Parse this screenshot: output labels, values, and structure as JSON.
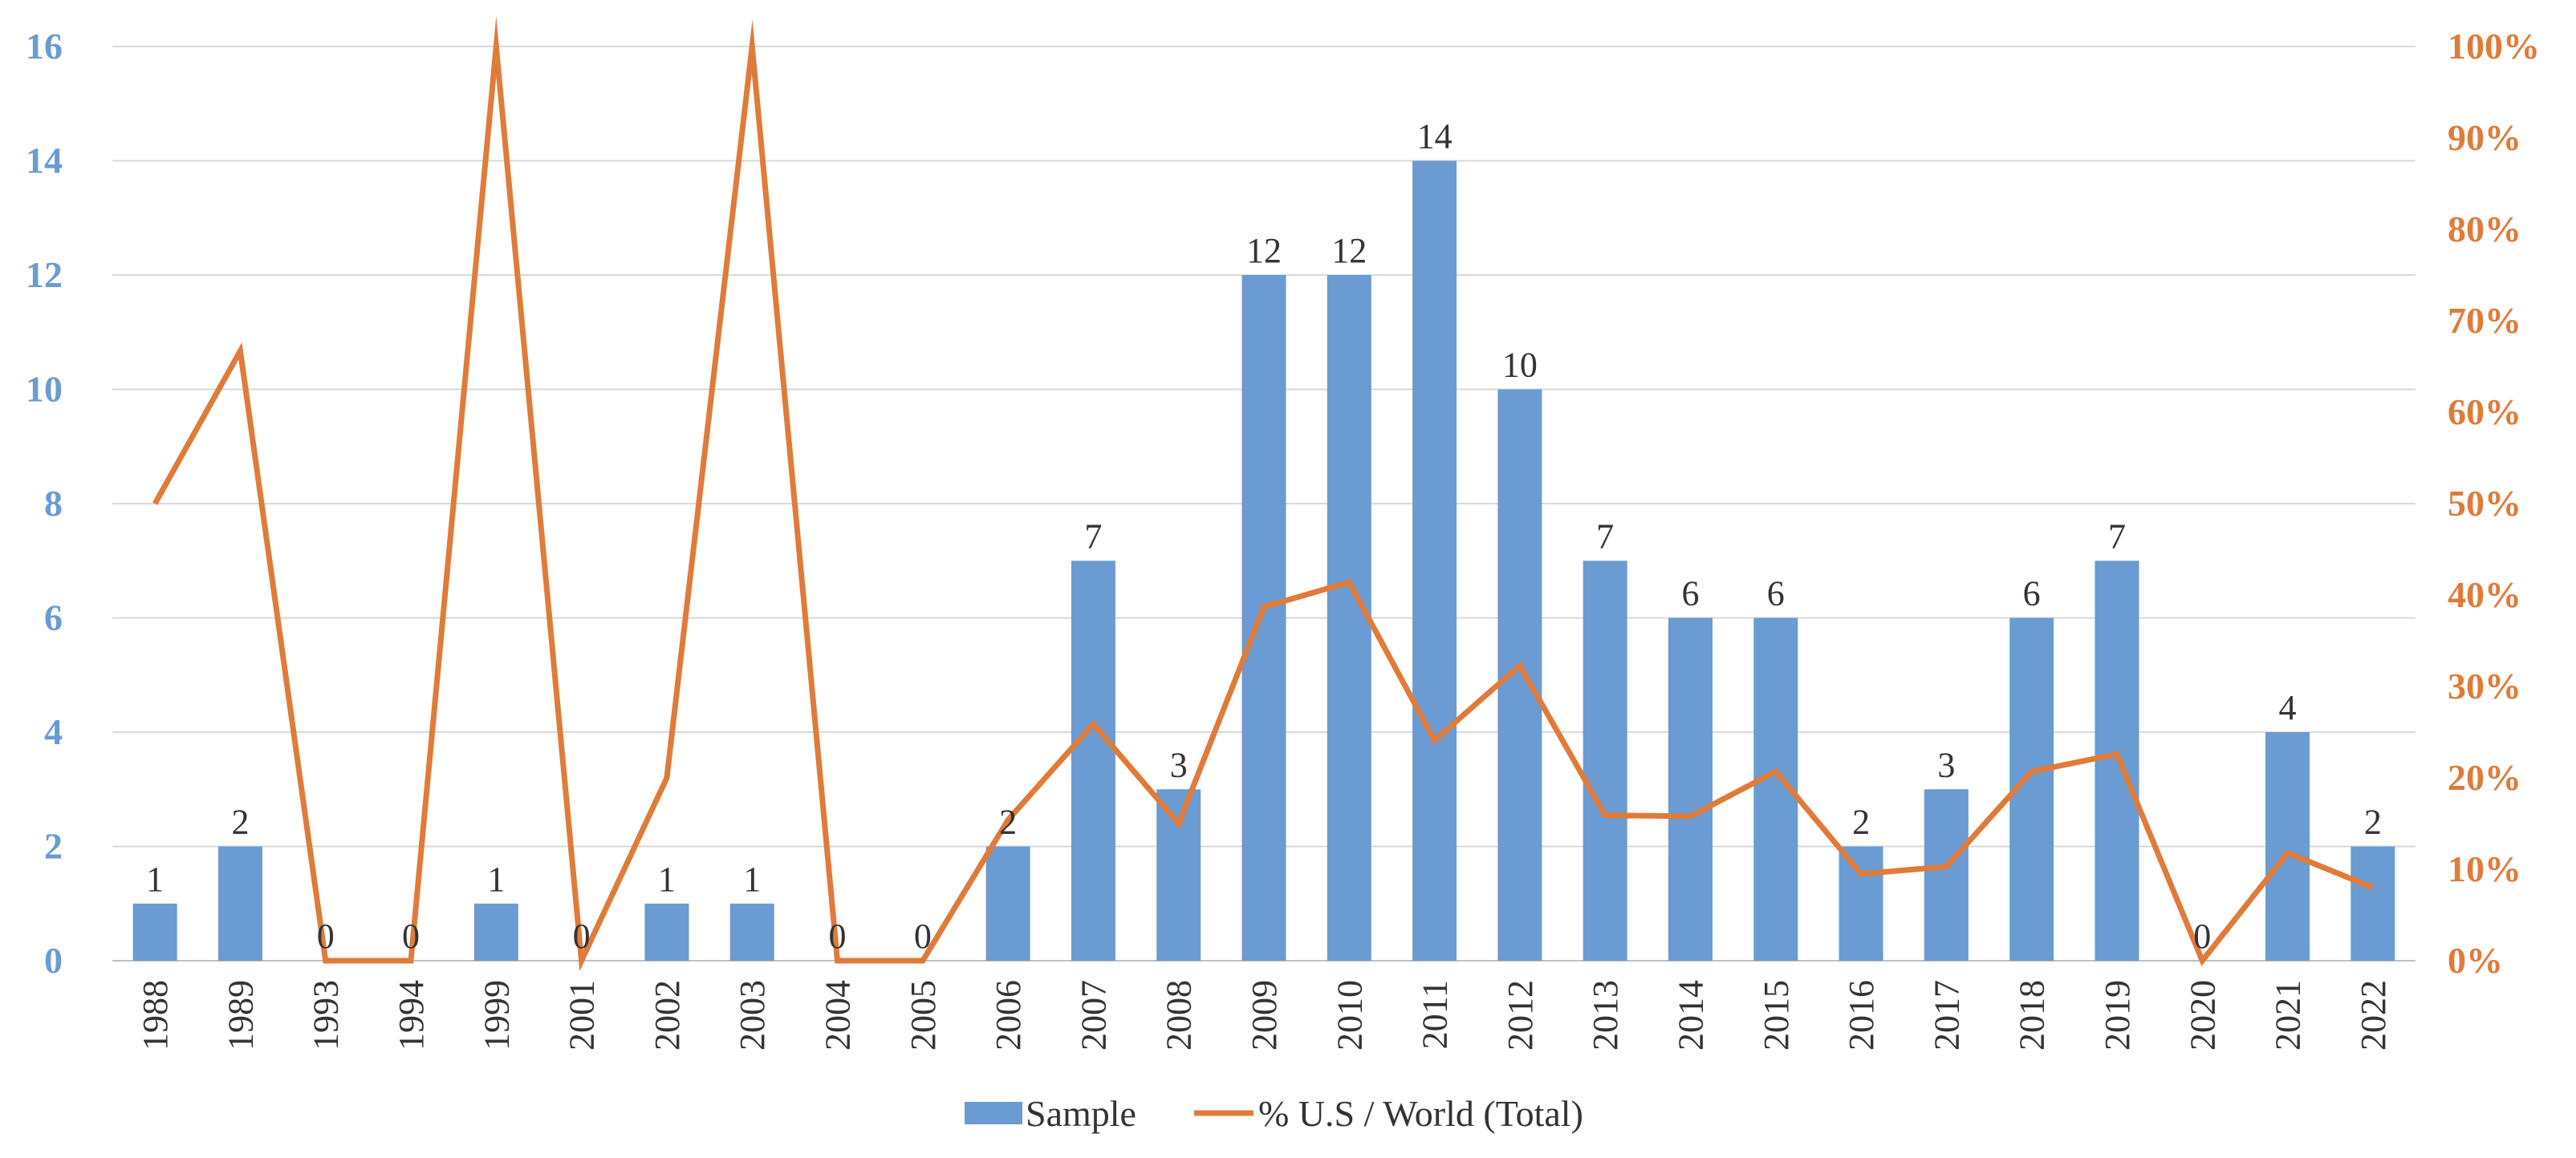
{
  "chart_data": {
    "type": "bar",
    "title": "",
    "categories": [
      "1988",
      "1989",
      "1993",
      "1994",
      "1999",
      "2001",
      "2002",
      "2003",
      "2004",
      "2005",
      "2006",
      "2007",
      "2008",
      "2009",
      "2010",
      "2011",
      "2012",
      "2013",
      "2014",
      "2015",
      "2016",
      "2017",
      "2018",
      "2019",
      "2020",
      "2021",
      "2022"
    ],
    "series": [
      {
        "name": "Sample",
        "type": "bar",
        "axis": "left",
        "color": "#6a9bd2",
        "values": [
          1,
          2,
          0,
          0,
          1,
          0,
          1,
          1,
          0,
          0,
          2,
          7,
          3,
          12,
          12,
          14,
          10,
          7,
          6,
          6,
          2,
          3,
          6,
          7,
          0,
          4,
          2
        ]
      },
      {
        "name": "% U.S / World (Total)",
        "type": "line",
        "axis": "right",
        "color": "#e07b39",
        "values": [
          50,
          66.7,
          0,
          0,
          100,
          0,
          20,
          100,
          0,
          0,
          15.4,
          25.9,
          15,
          38.7,
          41.4,
          24.1,
          32.3,
          15.9,
          15.8,
          20.7,
          9.5,
          10.3,
          20.7,
          22.6,
          0,
          11.8,
          8
        ]
      }
    ],
    "left_axis": {
      "ylim": [
        0,
        16
      ],
      "ticks": [
        "0",
        "2",
        "4",
        "6",
        "8",
        "10",
        "12",
        "14",
        "16"
      ],
      "color": "#6a9bd2"
    },
    "right_axis": {
      "ylim": [
        0,
        100
      ],
      "ticks": [
        "0%",
        "10%",
        "20%",
        "30%",
        "40%",
        "50%",
        "60%",
        "70%",
        "80%",
        "90%",
        "100%"
      ],
      "color": "#e07b39"
    },
    "xlabel": "",
    "ylabel": "",
    "grid": true,
    "legend": {
      "position": "bottom",
      "entries": [
        "Sample",
        "% U.S / World (Total)"
      ]
    }
  }
}
